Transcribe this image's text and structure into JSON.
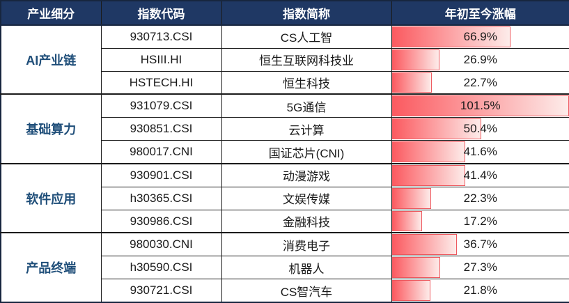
{
  "table": {
    "headers": {
      "segment": "产业细分",
      "code": "指数代码",
      "name": "指数简称",
      "change": "年初至今涨幅"
    },
    "groups": [
      {
        "label": "AI产业链",
        "rows": [
          {
            "code": "930713.CSI",
            "name": "CS人工智",
            "change": "66.9%"
          },
          {
            "code": "HSIII.HI",
            "name": "恒生互联网科技业",
            "change": "26.9%"
          },
          {
            "code": "HSTECH.HI",
            "name": "恒生科技",
            "change": "22.7%"
          }
        ]
      },
      {
        "label": "基础算力",
        "rows": [
          {
            "code": "931079.CSI",
            "name": "5G通信",
            "change": "101.5%"
          },
          {
            "code": "930851.CSI",
            "name": "云计算",
            "change": "50.4%"
          },
          {
            "code": "980017.CNI",
            "name": "国证芯片(CNI)",
            "change": "41.6%"
          }
        ]
      },
      {
        "label": "软件应用",
        "rows": [
          {
            "code": "930901.CSI",
            "name": "动漫游戏",
            "change": "41.4%"
          },
          {
            "code": "h30365.CSI",
            "name": "文娱传媒",
            "change": "22.3%"
          },
          {
            "code": "930986.CSI",
            "name": "金融科技",
            "change": "17.2%"
          }
        ]
      },
      {
        "label": "产品终端",
        "rows": [
          {
            "code": "980030.CNI",
            "name": "消费电子",
            "change": "36.7%"
          },
          {
            "code": "h30590.CSI",
            "name": "机器人",
            "change": "27.3%"
          },
          {
            "code": "930721.CSI",
            "name": "CS智汽车",
            "change": "21.8%"
          }
        ]
      }
    ]
  },
  "colors": {
    "header_bg": "#1f3864",
    "header_fg": "#ffffff",
    "group_fg": "#1f4e79",
    "bar_start": "#fb5a60",
    "bar_end": "#fdecea",
    "bar_border": "#ee5a60"
  },
  "chart_data": {
    "type": "table",
    "title": "年初至今涨幅",
    "categories": [
      "CS人工智",
      "恒生互联网科技业",
      "恒生科技",
      "5G通信",
      "云计算",
      "国证芯片(CNI)",
      "动漫游戏",
      "文娱传媒",
      "金融科技",
      "消费电子",
      "机器人",
      "CS智汽车"
    ],
    "values": [
      66.9,
      26.9,
      22.7,
      101.5,
      50.4,
      41.6,
      41.4,
      22.3,
      17.2,
      36.7,
      27.3,
      21.8
    ],
    "value_unit": "%",
    "bar_scale_max": 100,
    "legend_position": "none",
    "grid": false
  }
}
